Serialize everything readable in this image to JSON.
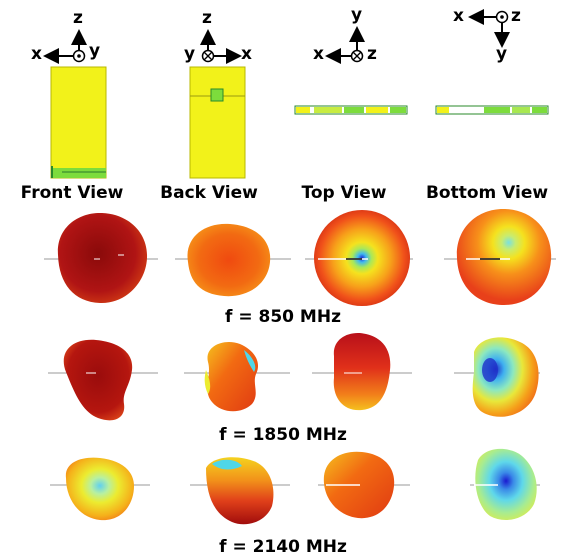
{
  "views": [
    {
      "label": "Front View",
      "axes": {
        "up": "z",
        "horizontal": "x",
        "center": "y"
      }
    },
    {
      "label": "Back View",
      "axes": {
        "up": "z",
        "horizontal_left": "y",
        "horizontal_right": "x"
      }
    },
    {
      "label": "Top View",
      "axes": {
        "up": "y",
        "horizontal": "x",
        "center": "z"
      }
    },
    {
      "label": "Bottom View",
      "axes": {
        "left": "x",
        "right": "z",
        "down": "y"
      }
    }
  ],
  "frequencies": [
    {
      "label": "f = 850 MHz"
    },
    {
      "label": "f = 1850 MHz"
    },
    {
      "label": "f = 2140 MHz"
    }
  ],
  "colors": {
    "device_yellow": "#f2f21a",
    "device_green": "#7ddc3c",
    "pattern_dark_red": "#a01010",
    "pattern_orange": "#f26a12",
    "pattern_yellow": "#f5e21e",
    "pattern_cyan": "#4fd6e8",
    "pattern_blue": "#2a3fd6"
  }
}
